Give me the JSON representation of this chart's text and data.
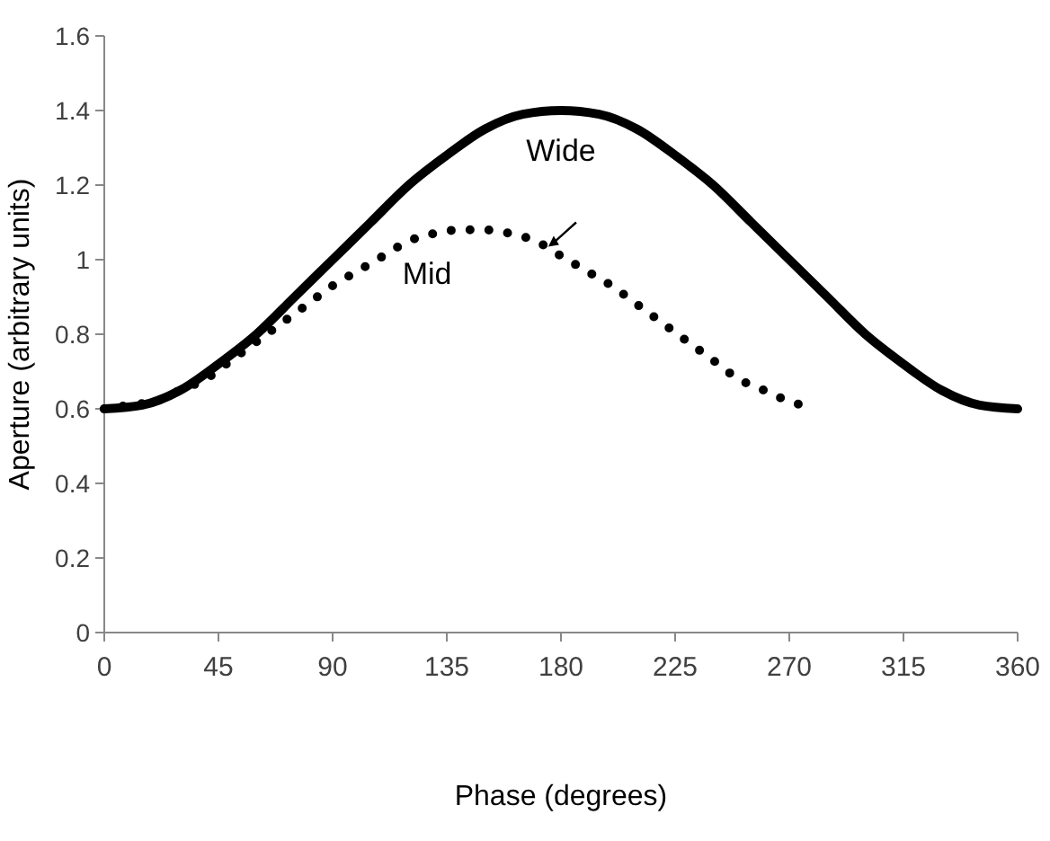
{
  "chart_data": {
    "type": "line",
    "xlabel": "Phase (degrees)",
    "ylabel": "Aperture (arbitrary units)",
    "xlim": [
      0,
      360
    ],
    "xticks": [
      0,
      45,
      90,
      135,
      180,
      225,
      270,
      315,
      360
    ],
    "ylim": [
      0,
      1.6
    ],
    "yticks": [
      0,
      0.2,
      0.4,
      0.6,
      0.8,
      1,
      1.2,
      1.4,
      1.6
    ],
    "grid": false,
    "series": [
      {
        "name": "Wide",
        "color": "#000000",
        "line_style": "solid",
        "x": [
          0,
          15,
          30,
          45,
          60,
          75,
          90,
          105,
          120,
          135,
          150,
          165,
          180,
          195,
          210,
          225,
          240,
          255,
          270,
          285,
          300,
          315,
          330,
          345,
          360
        ],
        "values": [
          0.6,
          0.61,
          0.65,
          0.72,
          0.8,
          0.9,
          1.0,
          1.1,
          1.2,
          1.28,
          1.35,
          1.39,
          1.4,
          1.39,
          1.35,
          1.28,
          1.2,
          1.1,
          1.0,
          0.9,
          0.8,
          0.72,
          0.65,
          0.61,
          0.6
        ]
      },
      {
        "name": "Mid",
        "color": "#000000",
        "line_style": "dotted",
        "x": [
          0,
          10,
          20,
          30,
          40,
          50,
          60,
          70,
          80,
          90,
          100,
          110,
          120,
          130,
          140,
          150,
          160,
          170,
          180,
          190,
          200,
          210,
          220,
          230,
          240,
          250,
          260,
          270,
          275
        ],
        "values": [
          0.6,
          0.61,
          0.62,
          0.65,
          0.68,
          0.73,
          0.78,
          0.83,
          0.88,
          0.93,
          0.97,
          1.01,
          1.05,
          1.07,
          1.08,
          1.08,
          1.07,
          1.05,
          1.01,
          0.97,
          0.93,
          0.88,
          0.83,
          0.78,
          0.73,
          0.68,
          0.65,
          0.62,
          0.61
        ]
      }
    ]
  }
}
